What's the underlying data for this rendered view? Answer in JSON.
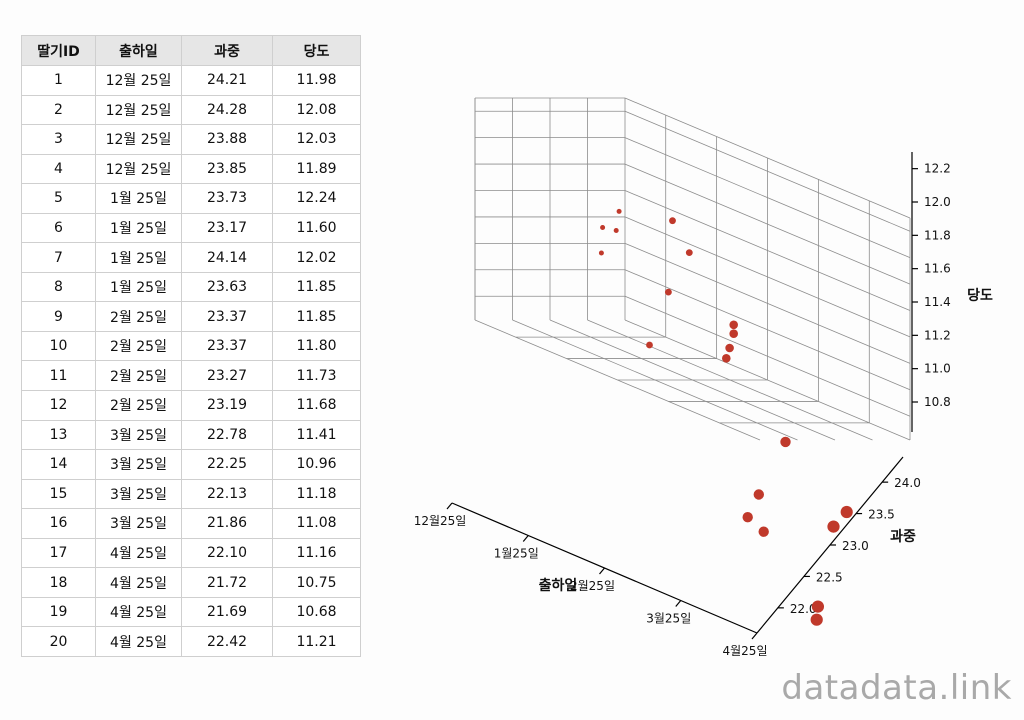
{
  "table": {
    "headers": [
      "딸기ID",
      "출하일",
      "과중",
      "당도"
    ],
    "rows": [
      [
        "1",
        "12월 25일",
        "24.21",
        "11.98"
      ],
      [
        "2",
        "12월 25일",
        "24.28",
        "12.08"
      ],
      [
        "3",
        "12월 25일",
        "23.88",
        "12.03"
      ],
      [
        "4",
        "12월 25일",
        "23.85",
        "11.89"
      ],
      [
        "5",
        "1월 25일",
        "23.73",
        "12.24"
      ],
      [
        "6",
        "1월 25일",
        "23.17",
        "11.60"
      ],
      [
        "7",
        "1월 25일",
        "24.14",
        "12.02"
      ],
      [
        "8",
        "1월 25일",
        "23.63",
        "11.85"
      ],
      [
        "9",
        "2월 25일",
        "23.37",
        "11.85"
      ],
      [
        "10",
        "2월 25일",
        "23.37",
        "11.80"
      ],
      [
        "11",
        "2월 25일",
        "23.27",
        "11.73"
      ],
      [
        "12",
        "2월 25일",
        "23.19",
        "11.68"
      ],
      [
        "13",
        "3월 25일",
        "22.78",
        "11.41"
      ],
      [
        "14",
        "3월 25일",
        "22.25",
        "10.96"
      ],
      [
        "15",
        "3월 25일",
        "22.13",
        "11.18"
      ],
      [
        "16",
        "3월 25일",
        "21.86",
        "11.08"
      ],
      [
        "17",
        "4월 25일",
        "22.10",
        "11.16"
      ],
      [
        "18",
        "4월 25일",
        "21.72",
        "10.75"
      ],
      [
        "19",
        "4월 25일",
        "21.69",
        "10.68"
      ],
      [
        "20",
        "4월 25일",
        "22.42",
        "11.21"
      ]
    ]
  },
  "chart_data": {
    "type": "scatter",
    "subtype": "3d-scatter",
    "xlabel": "출하일",
    "ylabel": "과중",
    "zlabel": "당도",
    "x_ticks": [
      "12월25일",
      "1월25일",
      "2월25일",
      "3월25일",
      "4월25일"
    ],
    "y_ticks": [
      "22.0",
      "22.5",
      "23.0",
      "23.5",
      "24.0"
    ],
    "z_ticks": [
      "10.8",
      "11.0",
      "11.2",
      "11.4",
      "11.6",
      "11.8",
      "12.0",
      "12.2"
    ],
    "ylim": [
      21.6,
      24.4
    ],
    "zlim": [
      10.62,
      12.3
    ],
    "marker_color": "#c0392b",
    "grid": true,
    "points": [
      {
        "x": "12월25일",
        "y": 24.21,
        "z": 11.98
      },
      {
        "x": "12월25일",
        "y": 24.28,
        "z": 12.08
      },
      {
        "x": "12월25일",
        "y": 23.88,
        "z": 12.03
      },
      {
        "x": "12월25일",
        "y": 23.85,
        "z": 11.89
      },
      {
        "x": "1월25일",
        "y": 23.73,
        "z": 12.24
      },
      {
        "x": "1월25일",
        "y": 23.17,
        "z": 11.6
      },
      {
        "x": "1월25일",
        "y": 24.14,
        "z": 12.02
      },
      {
        "x": "1월25일",
        "y": 23.63,
        "z": 11.85
      },
      {
        "x": "2월25일",
        "y": 23.37,
        "z": 11.85
      },
      {
        "x": "2월25일",
        "y": 23.37,
        "z": 11.8
      },
      {
        "x": "2월25일",
        "y": 23.27,
        "z": 11.73
      },
      {
        "x": "2월25일",
        "y": 23.19,
        "z": 11.68
      },
      {
        "x": "3월25일",
        "y": 22.78,
        "z": 11.41
      },
      {
        "x": "3월25일",
        "y": 22.25,
        "z": 10.96
      },
      {
        "x": "3월25일",
        "y": 22.13,
        "z": 11.18
      },
      {
        "x": "3월25일",
        "y": 21.86,
        "z": 11.08
      },
      {
        "x": "4월25일",
        "y": 22.1,
        "z": 11.16
      },
      {
        "x": "4월25일",
        "y": 21.72,
        "z": 10.75
      },
      {
        "x": "4월25일",
        "y": 21.69,
        "z": 10.68
      },
      {
        "x": "4월25일",
        "y": 22.42,
        "z": 11.21
      }
    ]
  },
  "watermark": "datadata.link"
}
